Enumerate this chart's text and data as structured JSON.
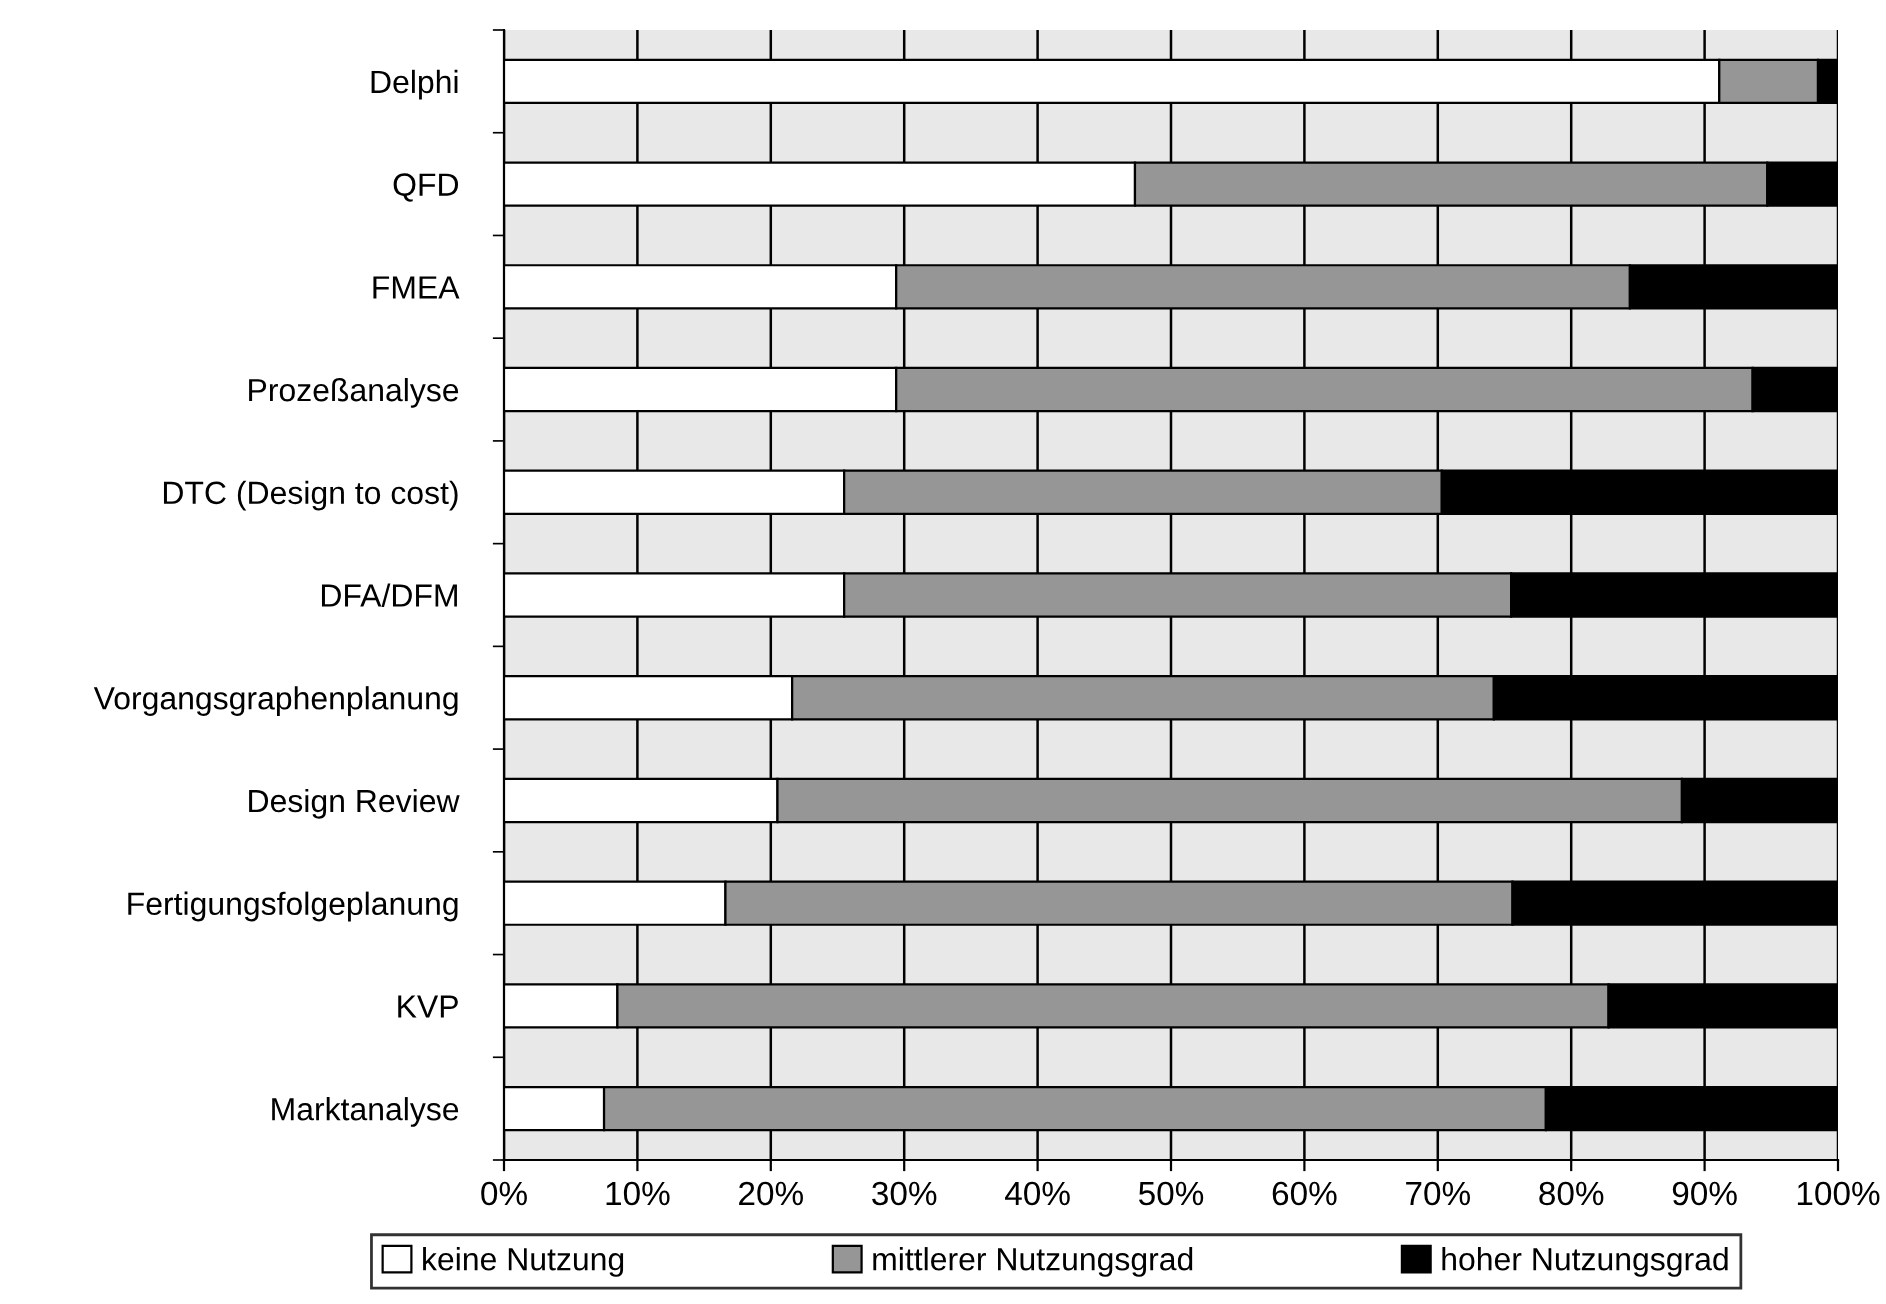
{
  "chart_data": {
    "type": "bar",
    "orientation": "horizontal",
    "stacked": true,
    "categories": [
      "Delphi",
      "QFD",
      "FMEA",
      "Prozeßanalyse",
      "DTC (Design to cost)",
      "DFA/DFM",
      "Vorgangsgraphenplanung",
      "Design Review",
      "Fertigungsfolgeplanung",
      "KVP",
      "Marktanalyse"
    ],
    "series": [
      {
        "name": "keine Nutzung",
        "color": "#ffffff",
        "values": [
          91.1,
          47.3,
          29.4,
          29.4,
          25.5,
          25.5,
          21.6,
          20.5,
          16.6,
          8.5,
          7.5
        ]
      },
      {
        "name": "mittlerer Nutzungsgrad",
        "color": "#969696",
        "values": [
          7.4,
          47.4,
          55.0,
          64.2,
          44.8,
          50.0,
          52.6,
          67.8,
          59.0,
          74.3,
          70.6
        ]
      },
      {
        "name": "hoher Nutzungsgrad",
        "color": "#000000",
        "values": [
          1.5,
          5.3,
          15.6,
          6.4,
          29.7,
          24.5,
          25.8,
          11.7,
          24.4,
          17.2,
          21.9
        ]
      }
    ],
    "xlim": [
      0,
      100
    ],
    "xticks": [
      {
        "value": 0,
        "label": "0%"
      },
      {
        "value": 10,
        "label": "10%"
      },
      {
        "value": 20,
        "label": "20%"
      },
      {
        "value": 30,
        "label": "30%"
      },
      {
        "value": 40,
        "label": "40%"
      },
      {
        "value": 50,
        "label": "50%"
      },
      {
        "value": 60,
        "label": "60%"
      },
      {
        "value": 70,
        "label": "70%"
      },
      {
        "value": 80,
        "label": "80%"
      },
      {
        "value": 90,
        "label": "90%"
      },
      {
        "value": 100,
        "label": "100%"
      }
    ],
    "grid": "x",
    "legend": "bottom"
  }
}
